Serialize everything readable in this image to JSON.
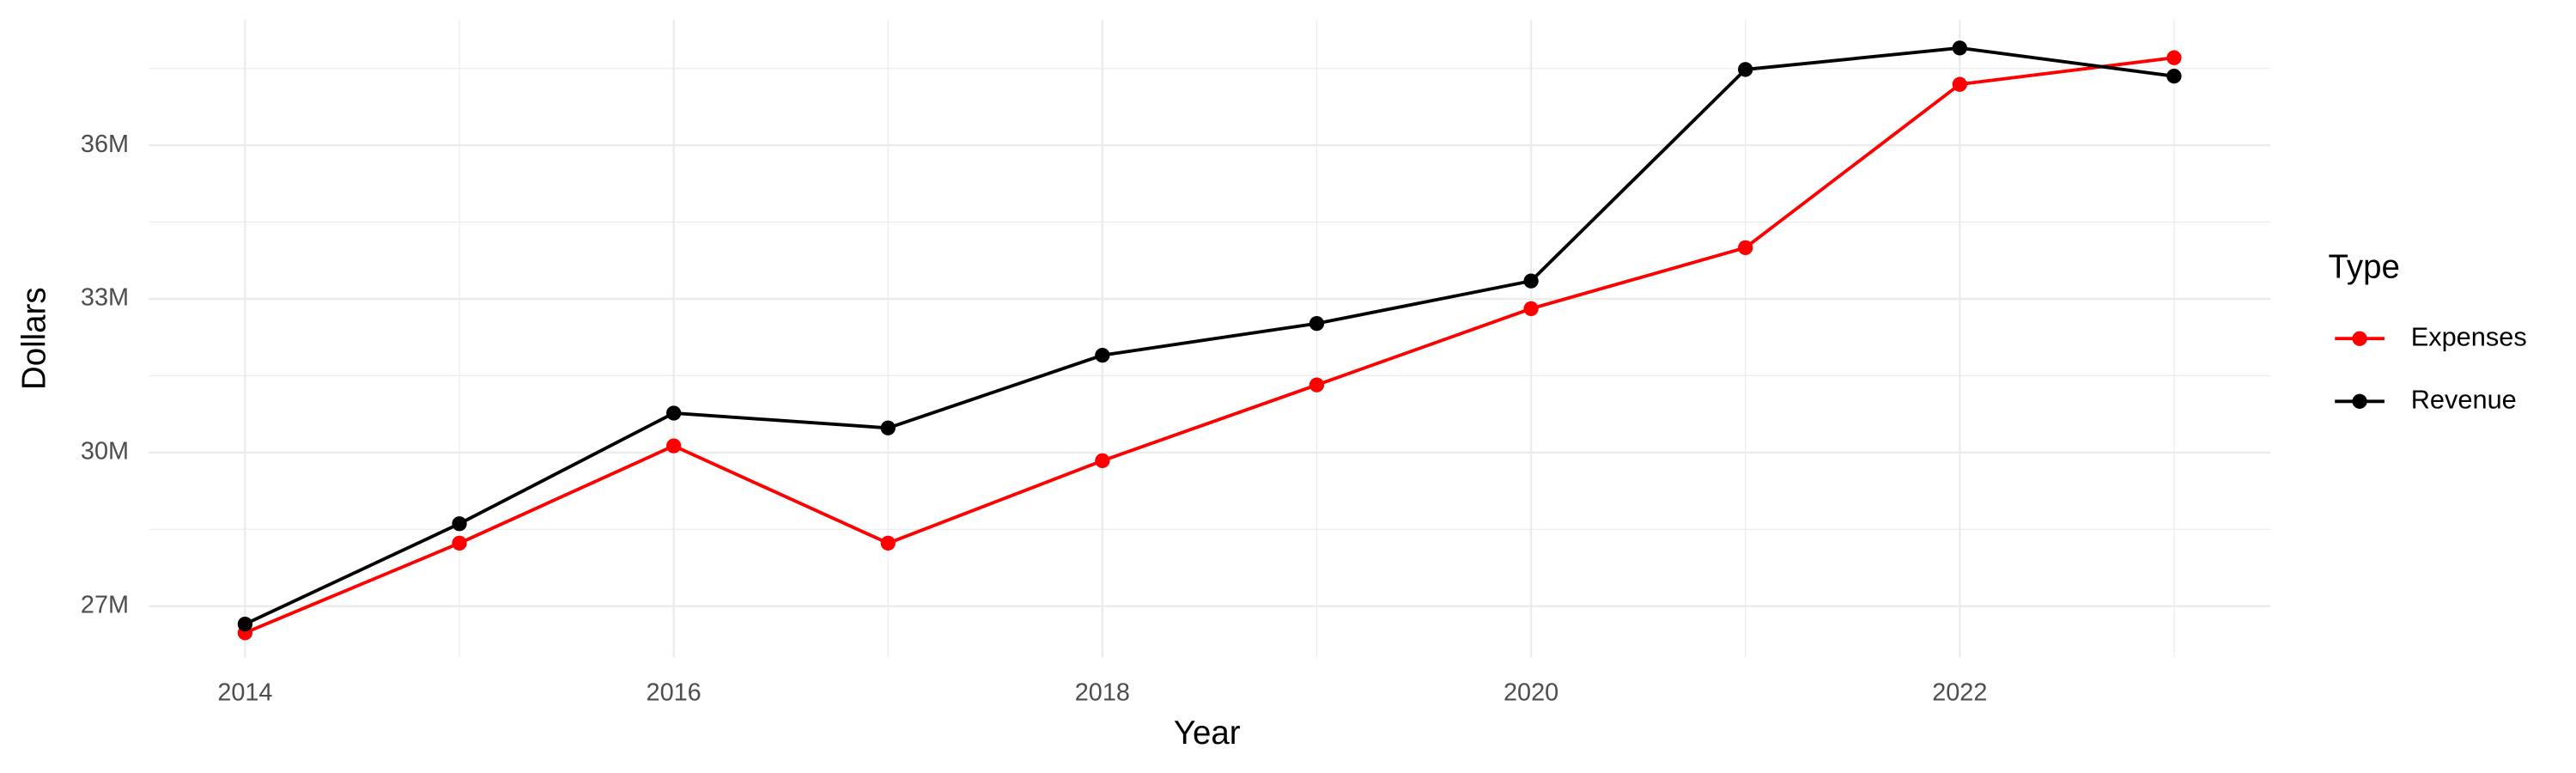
{
  "chart_data": {
    "type": "line",
    "x_label": "Year",
    "y_label": "Dollars",
    "legend_title": "Type",
    "legend": "right",
    "grid": true,
    "x": [
      2014,
      2015,
      2016,
      2017,
      2018,
      2019,
      2020,
      2021,
      2022,
      2023
    ],
    "series": [
      {
        "name": "Expenses",
        "color": "#ff0000",
        "values": [
          26480000,
          28230000,
          30130000,
          28230000,
          29840000,
          31320000,
          32810000,
          34000000,
          37190000,
          37710000
        ]
      },
      {
        "name": "Revenue",
        "color": "#000000",
        "values": [
          26650000,
          28610000,
          30770000,
          30480000,
          31900000,
          32520000,
          33350000,
          37480000,
          37900000,
          37350000
        ]
      }
    ],
    "xlim": [
      2013.55,
      2023.45
    ],
    "xticks": [
      2014,
      2016,
      2018,
      2020,
      2022
    ],
    "ylim": [
      26000000,
      38450000
    ],
    "yticks": [
      {
        "value": 27000000,
        "label": "27M"
      },
      {
        "value": 30000000,
        "label": "30M"
      },
      {
        "value": 33000000,
        "label": "33M"
      },
      {
        "value": 36000000,
        "label": "36M"
      }
    ]
  }
}
